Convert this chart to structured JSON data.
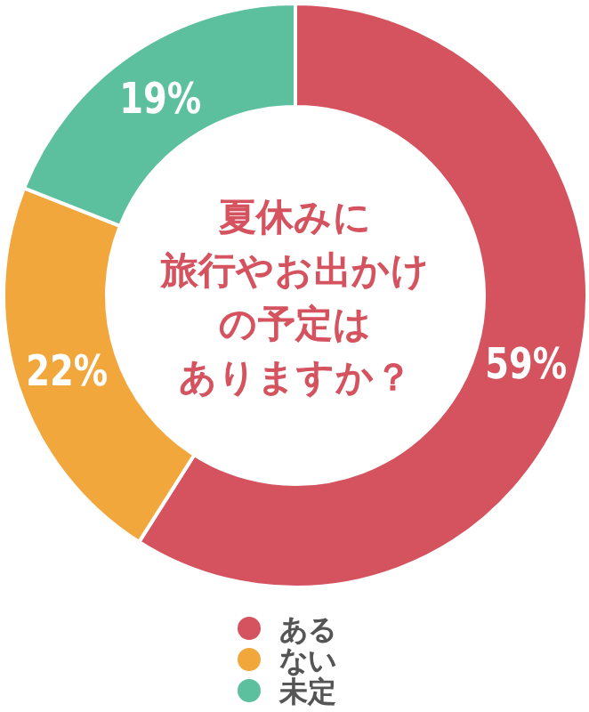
{
  "chart_data": {
    "type": "donut",
    "title": "夏休みに旅行やお出かけの予定はありますか？",
    "categories": [
      "ある",
      "ない",
      "未定"
    ],
    "values": [
      59,
      22,
      19
    ],
    "value_labels": [
      "59%",
      "22%",
      "19%"
    ],
    "colors": [
      "#d5525f",
      "#f2a73d",
      "#5cbf9e"
    ],
    "legend": "bottom"
  }
}
